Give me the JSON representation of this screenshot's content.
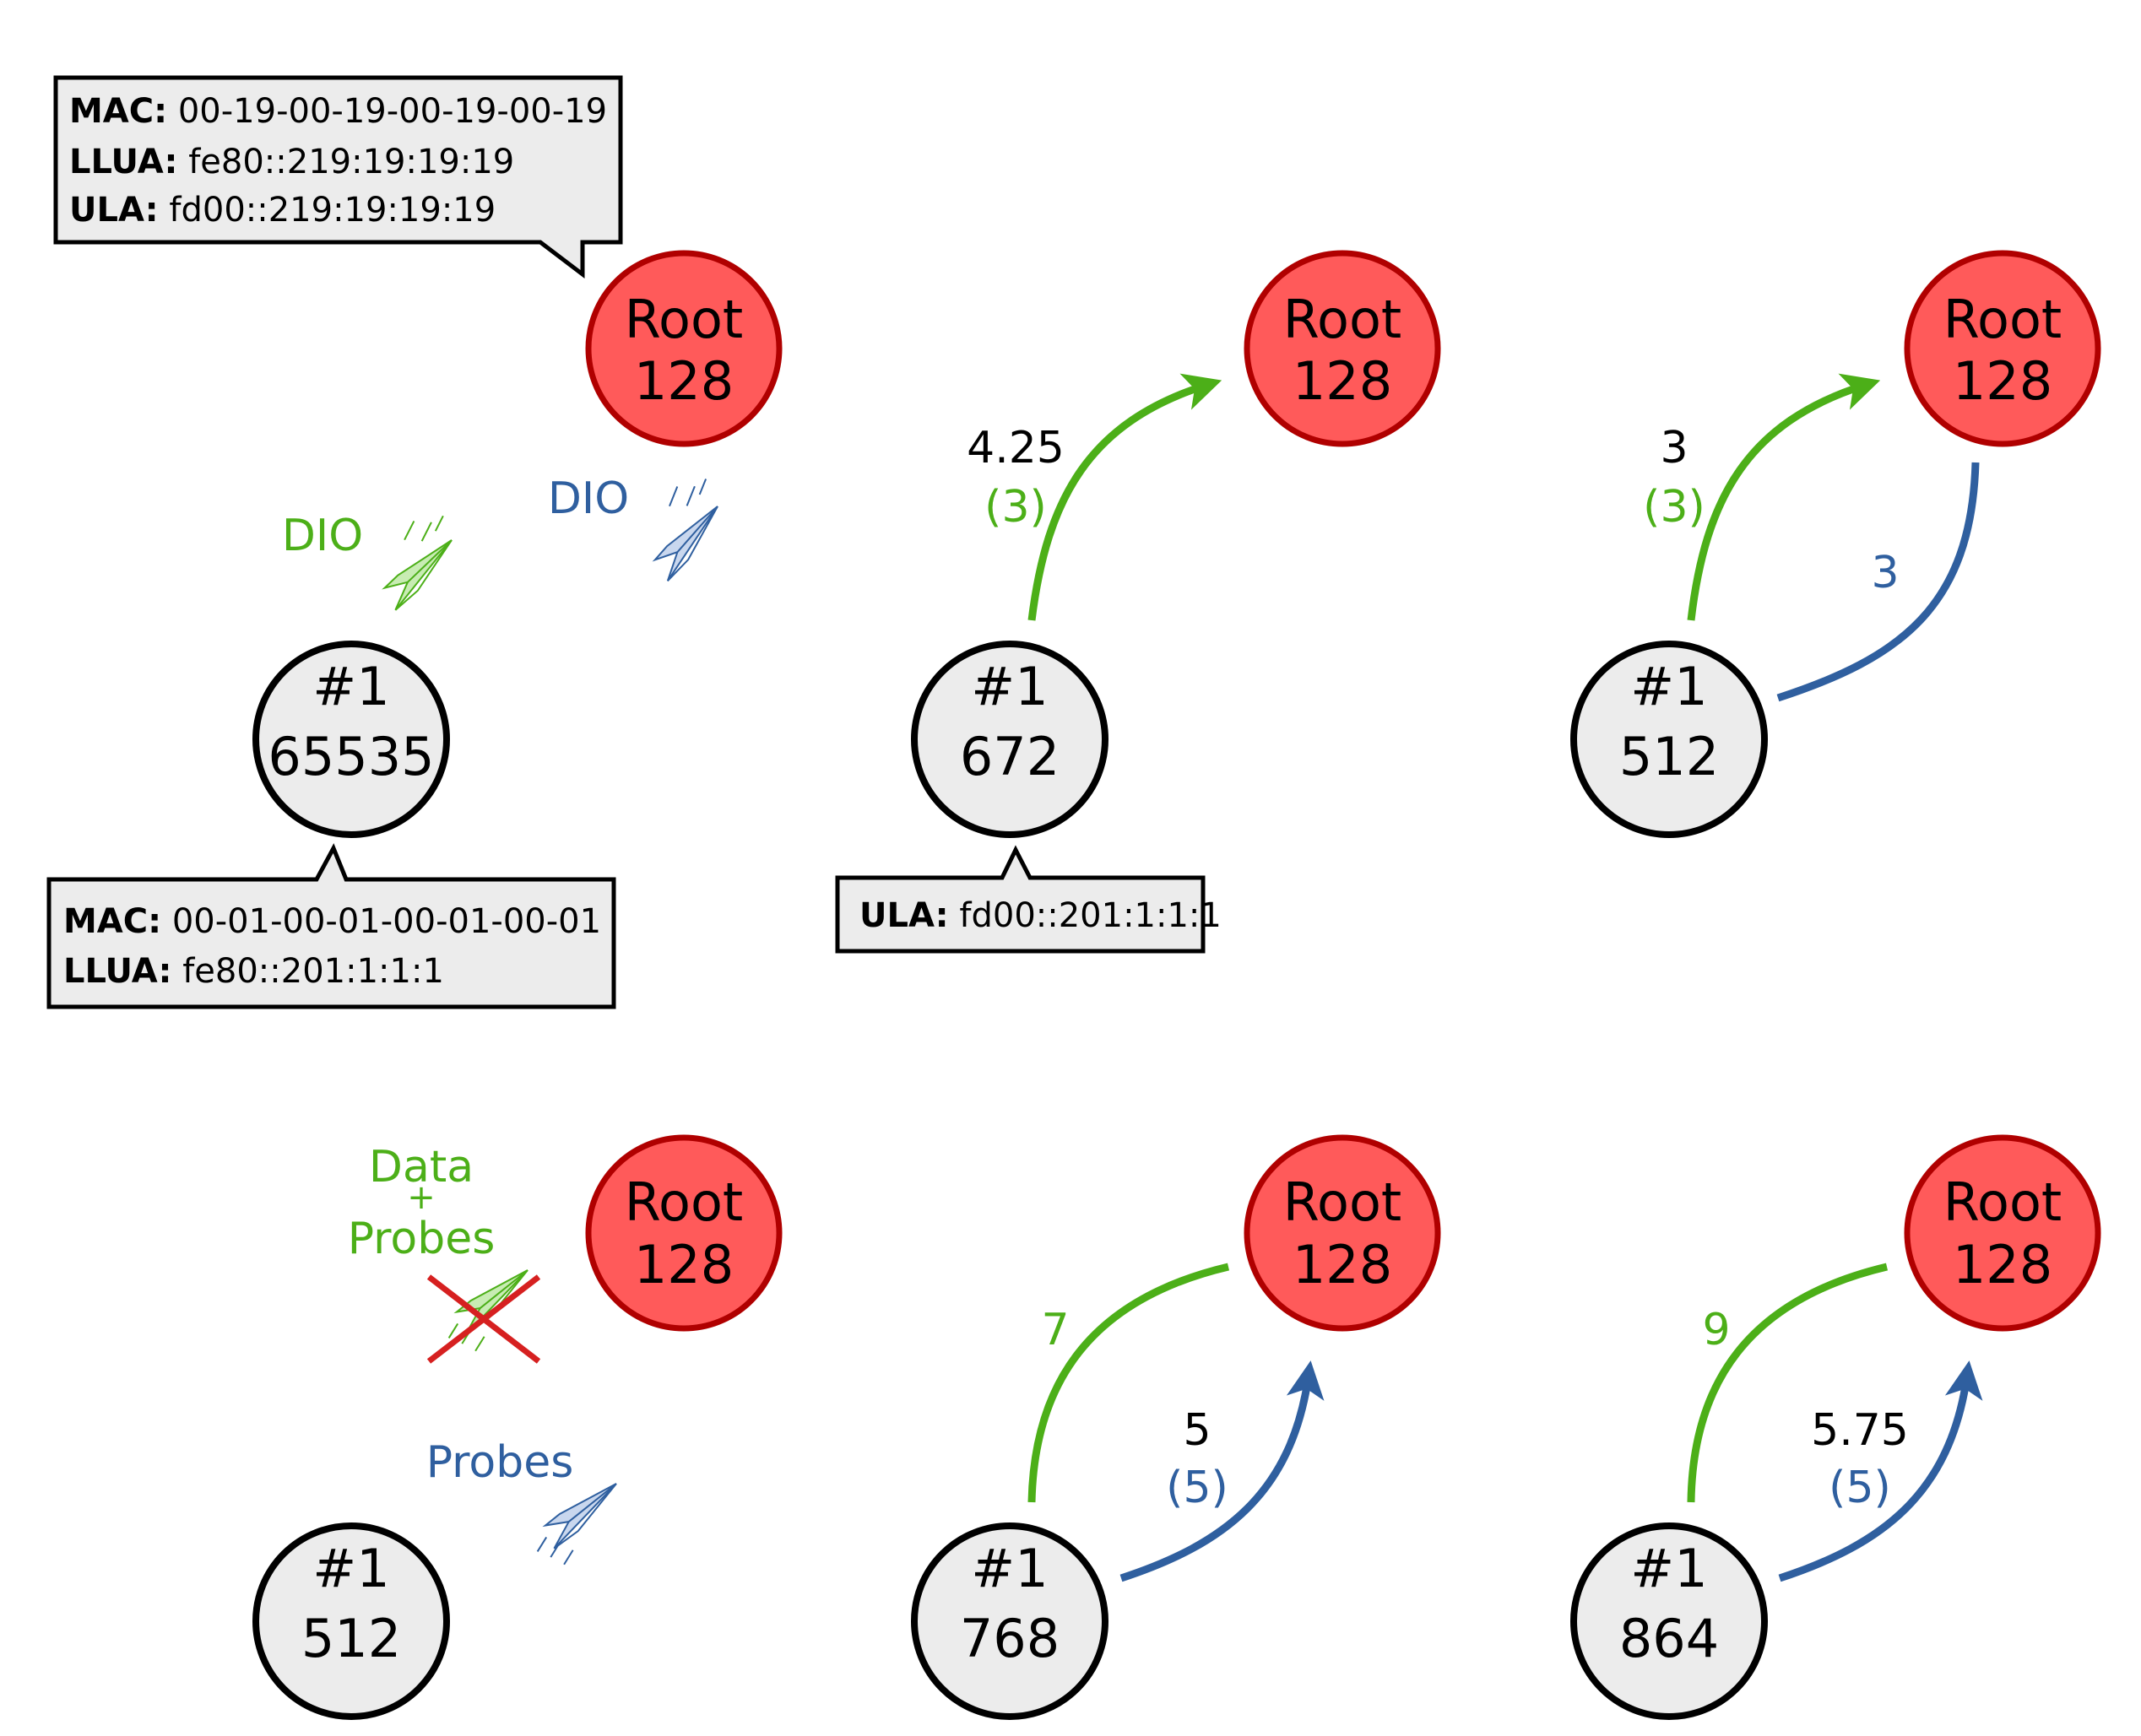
{
  "colors": {
    "green": "#4caf18",
    "blue": "#2f5f9f",
    "root_fill": "#ff5a5a",
    "root_stroke": "#b00000",
    "node_fill": "#ececec",
    "node_stroke": "#000000",
    "callout_fill": "#ececec",
    "cross_red": "#d62020"
  },
  "icons": [
    "paper-plane-icon",
    "cross-icon"
  ],
  "panels": [
    {
      "root": {
        "line1": "Root",
        "line2": "128"
      },
      "node": {
        "line1": "#1",
        "line2": "65535"
      },
      "root_callout": {
        "mac_key": "MAC:",
        "mac_value": "00-19-00-19-00-19-00-19",
        "llua_key": "LLUA:",
        "llua_value": "fe80::219:19:19:19",
        "ula_key": "ULA:",
        "ula_value": "fd00::219:19:19:19"
      },
      "node_callout": {
        "mac_key": "MAC:",
        "mac_value": "00-01-00-01-00-01-00-01",
        "llua_key": "LLUA:",
        "llua_value": "fe80::201:1:1:1"
      },
      "green_message": "DIO",
      "blue_message": "DIO"
    },
    {
      "root": {
        "line1": "Root",
        "line2": "128"
      },
      "node": {
        "line1": "#1",
        "line2": "672"
      },
      "green_value": "4.25",
      "green_sub": "(3)",
      "node_callout": {
        "ula_key": "ULA:",
        "ula_value": "fd00::201:1:1:1"
      }
    },
    {
      "root": {
        "line1": "Root",
        "line2": "128"
      },
      "node": {
        "line1": "#1",
        "line2": "512"
      },
      "green_value": "3",
      "green_sub": "(3)",
      "blue_value": "3"
    },
    {
      "root": {
        "line1": "Root",
        "line2": "128"
      },
      "node": {
        "line1": "#1",
        "line2": "512"
      },
      "green_message": "Data\n+\nProbes",
      "green_message_lines": [
        "Data",
        "+",
        "Probes"
      ],
      "blue_message": "Probes"
    },
    {
      "root": {
        "line1": "Root",
        "line2": "128"
      },
      "node": {
        "line1": "#1",
        "line2": "768"
      },
      "green_value": "7",
      "blue_value": "5",
      "blue_sub": "(5)"
    },
    {
      "root": {
        "line1": "Root",
        "line2": "128"
      },
      "node": {
        "line1": "#1",
        "line2": "864"
      },
      "green_value": "9",
      "blue_value": "5.75",
      "blue_sub": "(5)"
    }
  ]
}
